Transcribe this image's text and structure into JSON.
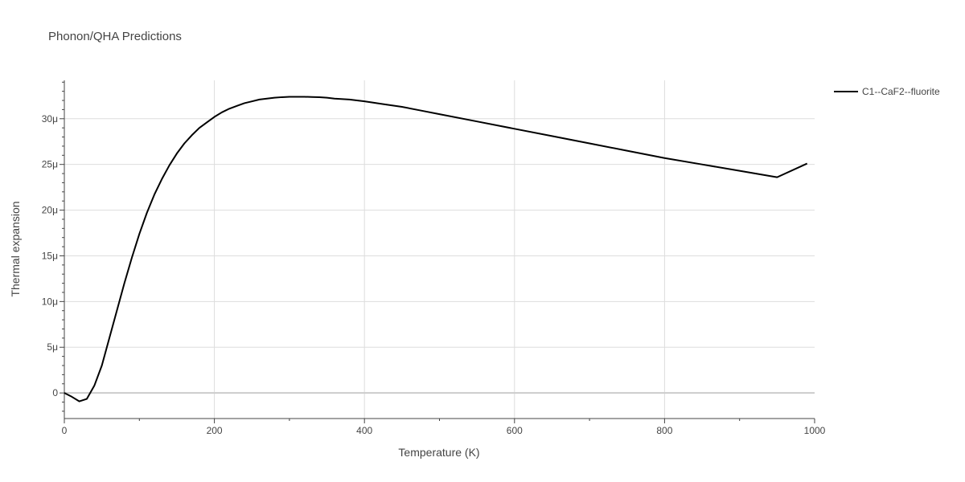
{
  "chart_data": {
    "type": "line",
    "title": "Phonon/QHA Predictions",
    "xlabel": "Temperature (K)",
    "ylabel": "Thermal expansion",
    "xlim": [
      0,
      1000
    ],
    "ylim": [
      -2.8e-06,
      3.42e-05
    ],
    "x_ticks": [
      0,
      200,
      400,
      600,
      800,
      1000
    ],
    "x_tick_labels": [
      "0",
      "200",
      "400",
      "600",
      "800",
      "1000"
    ],
    "y_ticks": [
      0,
      5e-06,
      1e-05,
      1.5e-05,
      2e-05,
      2.5e-05,
      3e-05
    ],
    "y_tick_labels": [
      "0",
      "5μ",
      "10μ",
      "15μ",
      "20μ",
      "25μ",
      "30μ"
    ],
    "grid": true,
    "legend_position": "top-right-outside",
    "series": [
      {
        "name": "C1--CaF2--fluorite",
        "color": "#000000",
        "x": [
          0,
          10,
          20,
          30,
          40,
          50,
          60,
          70,
          80,
          90,
          100,
          110,
          120,
          130,
          140,
          150,
          160,
          170,
          180,
          190,
          200,
          210,
          220,
          230,
          240,
          250,
          260,
          270,
          280,
          290,
          300,
          310,
          320,
          330,
          340,
          350,
          360,
          380,
          400,
          425,
          450,
          475,
          500,
          550,
          600,
          650,
          700,
          750,
          800,
          850,
          900,
          950,
          990
        ],
        "y": [
          0,
          -4.2e-07,
          -9.2e-07,
          -6.5e-07,
          8e-07,
          3e-06,
          6e-06,
          9e-06,
          1.2e-05,
          1.48e-05,
          1.74e-05,
          1.97e-05,
          2.17e-05,
          2.34e-05,
          2.49e-05,
          2.62e-05,
          2.73e-05,
          2.82e-05,
          2.9e-05,
          2.96e-05,
          3.02e-05,
          3.07e-05,
          3.11e-05,
          3.14e-05,
          3.17e-05,
          3.19e-05,
          3.21e-05,
          3.22e-05,
          3.23e-05,
          3.236e-05,
          3.24e-05,
          3.24e-05,
          3.24e-05,
          3.238e-05,
          3.235e-05,
          3.23e-05,
          3.22e-05,
          3.21e-05,
          3.19e-05,
          3.16e-05,
          3.13e-05,
          3.09e-05,
          3.05e-05,
          2.97e-05,
          2.89e-05,
          2.81e-05,
          2.73e-05,
          2.65e-05,
          2.57e-05,
          2.5e-05,
          2.43e-05,
          2.36e-05,
          2.51e-05
        ]
      }
    ]
  }
}
